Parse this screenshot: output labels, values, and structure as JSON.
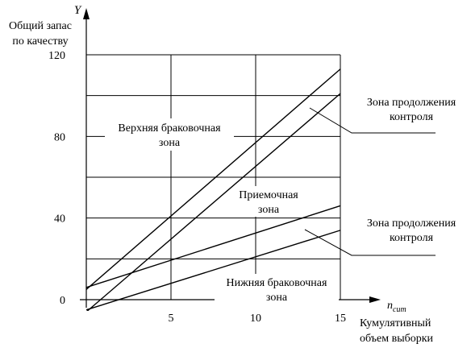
{
  "chart_data": {
    "type": "line",
    "ylabel_symbol": "Y",
    "ylabel_line1": "Общий запас",
    "ylabel_line2": "по качеству",
    "xlabel_symbol": "n",
    "xlabel_subscript": "cum",
    "xlabel_line1": "Кумулятивный",
    "xlabel_line2": "объем выборки",
    "xlim": [
      0,
      15
    ],
    "ylim": [
      0,
      120
    ],
    "xticks": [
      {
        "value": 5,
        "label": "5"
      },
      {
        "value": 10,
        "label": "10"
      },
      {
        "value": 15,
        "label": "15"
      }
    ],
    "yticks": [
      {
        "value": 0,
        "label": "0"
      },
      {
        "value": 40,
        "label": "40"
      },
      {
        "value": 80,
        "label": "80"
      },
      {
        "value": 120,
        "label": "120"
      }
    ],
    "y_gridlines": [
      20,
      40,
      60,
      80,
      100,
      120
    ],
    "x_gridlines": [
      5,
      10,
      15
    ],
    "grid": true,
    "series": [
      {
        "x": [
          0,
          15
        ],
        "y": [
          5,
          113
        ]
      },
      {
        "x": [
          0,
          15
        ],
        "y": [
          -6,
          101
        ]
      },
      {
        "x": [
          0,
          15
        ],
        "y": [
          6,
          46
        ]
      },
      {
        "x": [
          0,
          15
        ],
        "y": [
          -5,
          34
        ]
      }
    ],
    "zones": {
      "upper_line1": "Верхняя браковочная",
      "upper_line2": "зона",
      "accept_line1": "Приемочная",
      "accept_line2": "зона",
      "lower_line1": "Нижняя браковочная",
      "lower_line2": "зона"
    },
    "annotations": [
      {
        "line1": "Зона продолжения",
        "line2": "контроля"
      },
      {
        "line1": "Зона продолжения",
        "line2": "контроля"
      }
    ]
  }
}
